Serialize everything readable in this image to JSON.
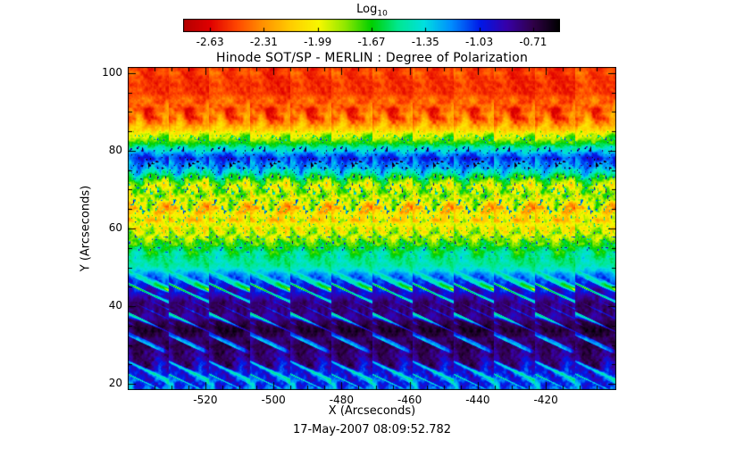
{
  "page": {
    "background": "#ffffff",
    "text_color": "#000000"
  },
  "chart_data": {
    "type": "heatmap",
    "title": "Hinode SOT/SP - MERLIN : Degree of Polarization",
    "xlabel": "X (Arcseconds)",
    "ylabel": "Y (Arcseconds)",
    "caption": "17-May-2007 08:09:52.782",
    "x_ticks": [
      "-520",
      "-500",
      "-480",
      "-460",
      "-440",
      "-420"
    ],
    "y_ticks": [
      "20",
      "40",
      "60",
      "80",
      "100"
    ],
    "x_range": [
      -542.8,
      -399.3
    ],
    "y_range": [
      18.4,
      101.6
    ],
    "grid": false,
    "legend": "none",
    "colorbar": {
      "label_main": "Log",
      "label_sub": "10",
      "vmin": -2.79,
      "vmax": -0.55,
      "tick_labels": [
        "-2.63",
        "-2.31",
        "-1.99",
        "-1.67",
        "-1.35",
        "-1.03",
        "-0.71"
      ]
    },
    "colormap": [
      {
        "t": 0.0,
        "c": "#b40000"
      },
      {
        "t": 0.07,
        "c": "#e00000"
      },
      {
        "t": 0.14,
        "c": "#ff4500"
      },
      {
        "t": 0.21,
        "c": "#ff9100"
      },
      {
        "t": 0.29,
        "c": "#ffd000"
      },
      {
        "t": 0.36,
        "c": "#f8f800"
      },
      {
        "t": 0.43,
        "c": "#90e800"
      },
      {
        "t": 0.5,
        "c": "#00d000"
      },
      {
        "t": 0.57,
        "c": "#00e890"
      },
      {
        "t": 0.64,
        "c": "#00e0e0"
      },
      {
        "t": 0.71,
        "c": "#0090ff"
      },
      {
        "t": 0.79,
        "c": "#0018e8"
      },
      {
        "t": 0.86,
        "c": "#3800a8"
      },
      {
        "t": 0.93,
        "c": "#300048"
      },
      {
        "t": 1.0,
        "c": "#000000"
      }
    ],
    "bands": [
      {
        "y": 101.6,
        "v": -2.52,
        "a": 0.14
      },
      {
        "y": 95.0,
        "v": -2.5,
        "a": 0.17
      },
      {
        "y": 88.0,
        "v": -2.38,
        "a": 0.22
      },
      {
        "y": 84.0,
        "v": -2.0,
        "a": 0.3
      },
      {
        "y": 81.0,
        "v": -1.4,
        "a": 0.28
      },
      {
        "y": 78.0,
        "v": -1.03,
        "a": 0.17
      },
      {
        "y": 75.0,
        "v": -1.35,
        "a": 0.28
      },
      {
        "y": 71.0,
        "v": -1.9,
        "a": 0.34
      },
      {
        "y": 66.0,
        "v": -2.05,
        "a": 0.34
      },
      {
        "y": 61.0,
        "v": -1.95,
        "a": 0.3
      },
      {
        "y": 57.0,
        "v": -1.8,
        "a": 0.26
      },
      {
        "y": 53.0,
        "v": -1.55,
        "a": 0.22
      },
      {
        "y": 50.0,
        "v": -1.38,
        "a": 0.18
      },
      {
        "y": 47.0,
        "v": -1.15,
        "a": 0.18
      },
      {
        "y": 44.0,
        "v": -0.95,
        "a": 0.18
      },
      {
        "y": 40.0,
        "v": -0.8,
        "a": 0.16
      },
      {
        "y": 34.0,
        "v": -0.74,
        "a": 0.14
      },
      {
        "y": 28.0,
        "v": -0.8,
        "a": 0.18
      },
      {
        "y": 23.0,
        "v": -0.95,
        "a": 0.22
      },
      {
        "y": 18.4,
        "v": -1.25,
        "a": 0.28
      }
    ],
    "column_period": 11.96,
    "streaks": {
      "y_max": 50,
      "threshold": 0.7,
      "strength": 3.3
    },
    "spots": {
      "y_min": 52,
      "y_max": 86,
      "threshold": 0.8,
      "strength": 7
    }
  }
}
